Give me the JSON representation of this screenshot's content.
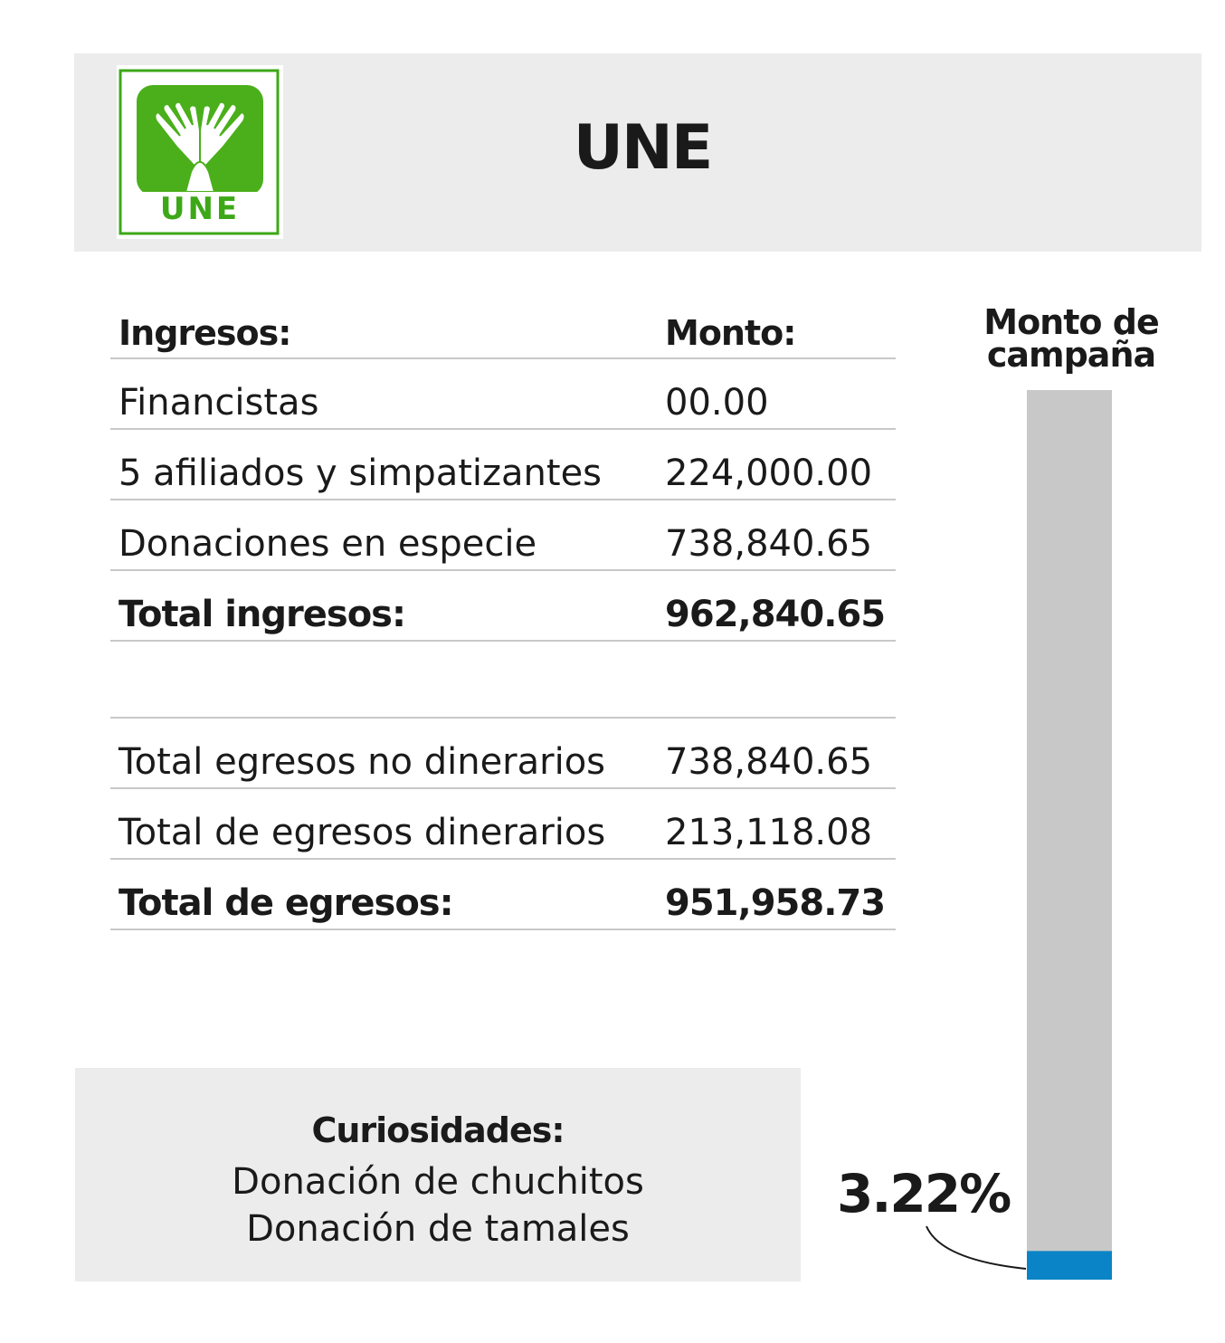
{
  "header": {
    "party_name": "UNE",
    "logo_text": "UNE",
    "logo_colors": {
      "green": "#4aaf1a",
      "frame": "#3da817"
    }
  },
  "table": {
    "col_label": "Ingresos:",
    "col_value": "Monto:",
    "income_rows": [
      {
        "label": "Financistas",
        "value": "00.00"
      },
      {
        "label": "5 afiliados y simpatizantes",
        "value": "224,000.00"
      },
      {
        "label": "Donaciones en especie",
        "value": "738,840.65"
      }
    ],
    "income_total": {
      "label": "Total ingresos:",
      "value": "962,840.65"
    },
    "expense_rows": [
      {
        "label": "Total egresos no dinerarios",
        "value": "738,840.65"
      },
      {
        "label": "Total de egresos dinerarios",
        "value": "213,118.08"
      }
    ],
    "expense_total": {
      "label": "Total de egresos:",
      "value": "951,958.73"
    }
  },
  "curiosities": {
    "title": "Curiosidades:",
    "items": [
      "Donación de chuchitos",
      "Donación de tamales"
    ]
  },
  "chart_data": {
    "type": "bar",
    "title": "Monto de campaña",
    "percent_label": "3.22%",
    "value_percent": 3.22,
    "ylim": [
      0,
      100
    ],
    "colors": {
      "track": "#c8c8c8",
      "fill": "#0a84c6"
    }
  }
}
